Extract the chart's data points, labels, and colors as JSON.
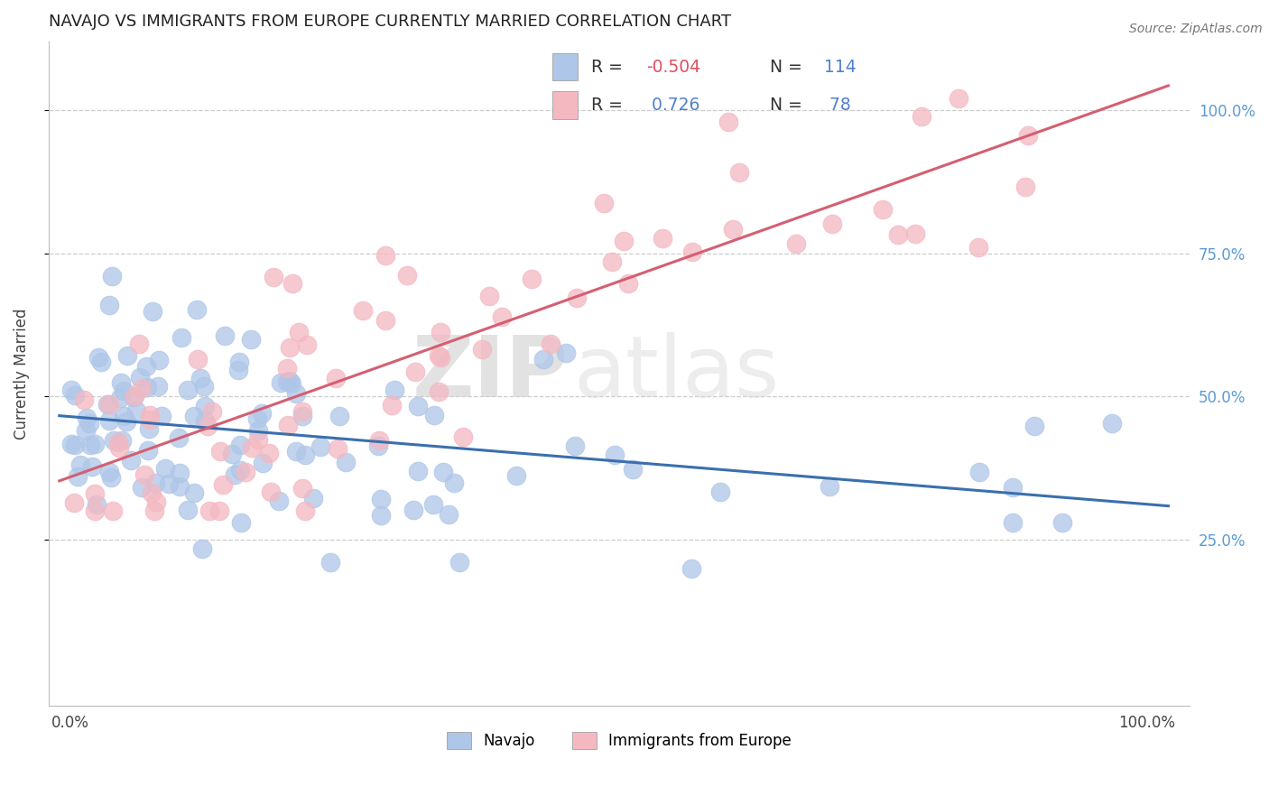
{
  "title": "NAVAJO VS IMMIGRANTS FROM EUROPE CURRENTLY MARRIED CORRELATION CHART",
  "source": "Source: ZipAtlas.com",
  "ylabel": "Currently Married",
  "navajo_R": -0.504,
  "navajo_N": 114,
  "europe_R": 0.726,
  "europe_N": 78,
  "navajo_color": "#aec6e8",
  "europe_color": "#f4b8c1",
  "navajo_line_color": "#3a6faf",
  "europe_line_color": "#d45f72",
  "legend_label1": "Navajo",
  "legend_label2": "Immigrants from Europe",
  "navajo_seed": 77,
  "europe_seed": 33,
  "title_fontsize": 13,
  "tick_fontsize": 12,
  "source_fontsize": 10,
  "ylabel_fontsize": 12
}
